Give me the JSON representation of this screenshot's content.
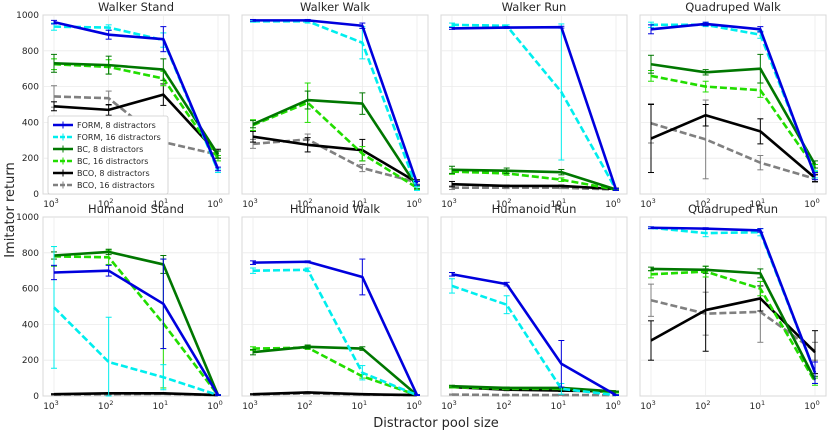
{
  "figure": {
    "xlabel": "Distractor pool size",
    "ylabel": "Imitator return"
  },
  "chart_data": {
    "type": "line",
    "x": [
      "10^3",
      "10^2",
      "10^1",
      "10^0"
    ],
    "x_tick_labels": [
      {
        "base": "10",
        "exp": "3"
      },
      {
        "base": "10",
        "exp": "2"
      },
      {
        "base": "10",
        "exp": "1"
      },
      {
        "base": "10",
        "exp": "0"
      }
    ],
    "xlabel": "Distractor pool size",
    "ylabel": "Imitator return",
    "ylim": [
      0,
      1000
    ],
    "y_ticks": [
      "0",
      "200",
      "400",
      "600",
      "800",
      "1000"
    ],
    "legend": [
      {
        "name": "FORM, 8 distractors",
        "color": "#0000dd",
        "dash": "solid"
      },
      {
        "name": "FORM, 16 distractors",
        "color": "#00eeee",
        "dash": "dashed"
      },
      {
        "name": "BC, 8 distractors",
        "color": "#007700",
        "dash": "solid"
      },
      {
        "name": "BC, 16 distractors",
        "color": "#22dd00",
        "dash": "dashed"
      },
      {
        "name": "BCO, 8 distractors",
        "color": "#000000",
        "dash": "solid"
      },
      {
        "name": "BCO, 16 distractors",
        "color": "#808080",
        "dash": "dashed"
      }
    ],
    "legend_location": "lower-left of first panel",
    "panels": [
      {
        "title": "Walker Stand",
        "series": [
          {
            "name": "FORM, 8 distractors",
            "values": [
              960,
              890,
              865,
              140
            ],
            "err": [
              10,
              25,
              70,
              10
            ]
          },
          {
            "name": "FORM, 16 distractors",
            "values": [
              935,
              930,
              860,
              130
            ],
            "err": [
              20,
              15,
              40,
              10
            ]
          },
          {
            "name": "BC, 8 distractors",
            "values": [
              730,
              720,
              695,
              220
            ],
            "err": [
              50,
              50,
              60,
              20
            ]
          },
          {
            "name": "BC, 16 distractors",
            "values": [
              725,
              710,
              645,
              200
            ],
            "err": [
              30,
              40,
              40,
              15
            ]
          },
          {
            "name": "BCO, 8 distractors",
            "values": [
              490,
              470,
              555,
              225
            ],
            "err": [
              25,
              30,
              60,
              25
            ]
          },
          {
            "name": "BCO, 16 distractors",
            "values": [
              545,
              535,
              290,
              220
            ],
            "err": [
              60,
              40,
              40,
              20
            ]
          }
        ]
      },
      {
        "title": "Walker Walk",
        "series": [
          {
            "name": "FORM, 8 distractors",
            "values": [
              970,
              970,
              940,
              60
            ],
            "err": [
              5,
              5,
              15,
              10
            ]
          },
          {
            "name": "FORM, 16 distractors",
            "values": [
              965,
              965,
              845,
              30
            ],
            "err": [
              5,
              10,
              90,
              10
            ]
          },
          {
            "name": "BC, 8 distractors",
            "values": [
              390,
              525,
              505,
              40
            ],
            "err": [
              20,
              50,
              60,
              10
            ]
          },
          {
            "name": "BC, 16 distractors",
            "values": [
              385,
              510,
              225,
              35
            ],
            "err": [
              30,
              110,
              40,
              10
            ]
          },
          {
            "name": "BCO, 8 distractors",
            "values": [
              320,
              275,
              245,
              65
            ],
            "err": [
              30,
              40,
              60,
              15
            ]
          },
          {
            "name": "BCO, 16 distractors",
            "values": [
              280,
              305,
              145,
              65
            ],
            "err": [
              25,
              30,
              20,
              10
            ]
          }
        ]
      },
      {
        "title": "Walker Run",
        "series": [
          {
            "name": "FORM, 8 distractors",
            "values": [
              925,
              930,
              932,
              25
            ],
            "err": [
              5,
              5,
              5,
              5
            ]
          },
          {
            "name": "FORM, 16 distractors",
            "values": [
              945,
              940,
              570,
              25
            ],
            "err": [
              10,
              5,
              380,
              5
            ]
          },
          {
            "name": "BC, 8 distractors",
            "values": [
              135,
              130,
              122,
              25
            ],
            "err": [
              20,
              15,
              15,
              5
            ]
          },
          {
            "name": "BC, 16 distractors",
            "values": [
              125,
              115,
              80,
              25
            ],
            "err": [
              15,
              10,
              10,
              5
            ]
          },
          {
            "name": "BCO, 8 distractors",
            "values": [
              55,
              45,
              45,
              28
            ],
            "err": [
              15,
              5,
              5,
              5
            ]
          },
          {
            "name": "BCO, 16 distractors",
            "values": [
              35,
              35,
              35,
              25
            ],
            "err": [
              10,
              5,
              5,
              5
            ]
          }
        ]
      },
      {
        "title": "Quadruped Walk",
        "series": [
          {
            "name": "FORM, 8 distractors",
            "values": [
              920,
              950,
              920,
              100
            ],
            "err": [
              25,
              10,
              15,
              20
            ]
          },
          {
            "name": "FORM, 16 distractors",
            "values": [
              945,
              945,
              890,
              110
            ],
            "err": [
              15,
              10,
              20,
              20
            ]
          },
          {
            "name": "BC, 8 distractors",
            "values": [
              725,
              680,
              700,
              165
            ],
            "err": [
              50,
              15,
              80,
              20
            ]
          },
          {
            "name": "BC, 16 distractors",
            "values": [
              660,
              600,
              580,
              145
            ],
            "err": [
              30,
              30,
              40,
              20
            ]
          },
          {
            "name": "BCO, 8 distractors",
            "values": [
              310,
              440,
              350,
              90
            ],
            "err": [
              190,
              60,
              70,
              20
            ]
          },
          {
            "name": "BCO, 16 distractors",
            "values": [
              395,
              305,
              175,
              85
            ],
            "err": [
              110,
              220,
              40,
              20
            ]
          }
        ]
      },
      {
        "title": "Humanoid Stand",
        "series": [
          {
            "name": "FORM, 8 distractors",
            "values": [
              690,
              700,
              515,
              5
            ],
            "err": [
              40,
              30,
              250,
              2
            ]
          },
          {
            "name": "FORM, 16 distractors",
            "values": [
              495,
              190,
              105,
              5
            ],
            "err": [
              340,
              250,
              70,
              2
            ]
          },
          {
            "name": "BC, 8 distractors",
            "values": [
              785,
              805,
              735,
              5
            ],
            "err": [
              20,
              15,
              50,
              2
            ]
          },
          {
            "name": "BC, 16 distractors",
            "values": [
              780,
              775,
              405,
              5
            ],
            "err": [
              55,
              40,
              360,
              2
            ]
          },
          {
            "name": "BCO, 8 distractors",
            "values": [
              10,
              15,
              15,
              5
            ],
            "err": [
              3,
              3,
              3,
              2
            ]
          },
          {
            "name": "BCO, 16 distractors",
            "values": [
              8,
              10,
              12,
              5
            ],
            "err": [
              3,
              3,
              3,
              2
            ]
          }
        ]
      },
      {
        "title": "Humanoid Walk",
        "series": [
          {
            "name": "FORM, 8 distractors",
            "values": [
              745,
              750,
              665,
              5
            ],
            "err": [
              10,
              5,
              100,
              2
            ]
          },
          {
            "name": "FORM, 16 distractors",
            "values": [
              700,
              705,
              130,
              5
            ],
            "err": [
              15,
              10,
              40,
              2
            ]
          },
          {
            "name": "BC, 8 distractors",
            "values": [
              245,
              275,
              265,
              5
            ],
            "err": [
              15,
              10,
              10,
              2
            ]
          },
          {
            "name": "BC, 16 distractors",
            "values": [
              265,
              270,
              110,
              5
            ],
            "err": [
              10,
              10,
              10,
              2
            ]
          },
          {
            "name": "BCO, 8 distractors",
            "values": [
              10,
              20,
              10,
              5
            ],
            "err": [
              3,
              3,
              3,
              2
            ]
          },
          {
            "name": "BCO, 16 distractors",
            "values": [
              8,
              15,
              8,
              5
            ],
            "err": [
              3,
              3,
              3,
              2
            ]
          }
        ]
      },
      {
        "title": "Humanoid Run",
        "series": [
          {
            "name": "FORM, 8 distractors",
            "values": [
              680,
              625,
              180,
              5
            ],
            "err": [
              10,
              10,
              130,
              2
            ]
          },
          {
            "name": "FORM, 16 distractors",
            "values": [
              615,
              510,
              40,
              5
            ],
            "err": [
              40,
              50,
              30,
              2
            ]
          },
          {
            "name": "BC, 8 distractors",
            "values": [
              55,
              45,
              45,
              25
            ],
            "err": [
              5,
              5,
              5,
              3
            ]
          },
          {
            "name": "BC, 16 distractors",
            "values": [
              50,
              40,
              40,
              20
            ],
            "err": [
              5,
              5,
              5,
              3
            ]
          },
          {
            "name": "BCO, 8 distractors",
            "values": [
              50,
              35,
              30,
              25
            ],
            "err": [
              5,
              5,
              5,
              3
            ]
          },
          {
            "name": "BCO, 16 distractors",
            "values": [
              8,
              5,
              5,
              5
            ],
            "err": [
              3,
              2,
              2,
              2
            ]
          }
        ]
      },
      {
        "title": "Quadruped Run",
        "series": [
          {
            "name": "FORM, 8 distractors",
            "values": [
              940,
              935,
              925,
              130
            ],
            "err": [
              5,
              5,
              10,
              60
            ]
          },
          {
            "name": "FORM, 16 distractors",
            "values": [
              940,
              910,
              915,
              130
            ],
            "err": [
              5,
              20,
              20,
              60
            ]
          },
          {
            "name": "BC, 8 distractors",
            "values": [
              710,
              705,
              685,
              90
            ],
            "err": [
              10,
              20,
              25,
              20
            ]
          },
          {
            "name": "BC, 16 distractors",
            "values": [
              680,
              695,
              600,
              80
            ],
            "err": [
              20,
              30,
              40,
              20
            ]
          },
          {
            "name": "BCO, 8 distractors",
            "values": [
              310,
              480,
              545,
              245
            ],
            "err": [
              110,
              230,
              70,
              120
            ]
          },
          {
            "name": "BCO, 16 distractors",
            "values": [
              535,
              460,
              470,
              250
            ],
            "err": [
              90,
              120,
              170,
              50
            ]
          }
        ]
      }
    ]
  }
}
